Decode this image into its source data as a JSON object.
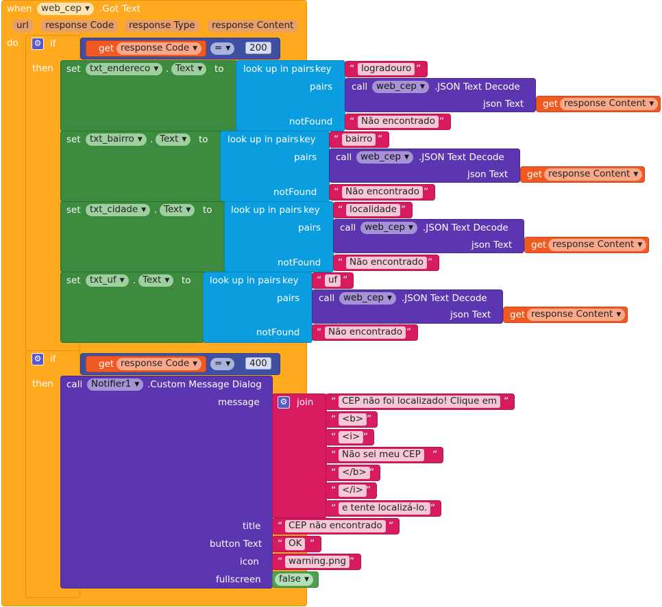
{
  "event": {
    "when": "when",
    "component": "web_cep",
    "event_name": ".Got Text",
    "params": [
      "url",
      "response Code",
      "response Type",
      "response Content"
    ],
    "do": "do"
  },
  "if1": {
    "if": "if",
    "then": "then",
    "get": "get",
    "var": "response Code",
    "op": "=",
    "value": "200"
  },
  "set_rows": [
    {
      "set": "set",
      "comp": "txt_endereco",
      "prop": "Text",
      "to": "to",
      "lookup": "look up in pairs",
      "key_label": "key",
      "key": "logradouro",
      "pairs": "pairs",
      "call": "call",
      "decode_comp": "web_cep",
      "decode_method": ".JSON Text Decode",
      "json_text": "json Text",
      "get": "get",
      "content": "response Content",
      "notfound_label": "notFound",
      "notfound": "Não encontrado"
    },
    {
      "set": "set",
      "comp": "txt_bairro",
      "prop": "Text",
      "to": "to",
      "lookup": "look up in pairs",
      "key_label": "key",
      "key": "bairro",
      "pairs": "pairs",
      "call": "call",
      "decode_comp": "web_cep",
      "decode_method": ".JSON Text Decode",
      "json_text": "json Text",
      "get": "get",
      "content": "response Content",
      "notfound_label": "notFound",
      "notfound": "Não encontrado"
    },
    {
      "set": "set",
      "comp": "txt_cidade",
      "prop": "Text",
      "to": "to",
      "lookup": "look up in pairs",
      "key_label": "key",
      "key": "localidade",
      "pairs": "pairs",
      "call": "call",
      "decode_comp": "web_cep",
      "decode_method": ".JSON Text Decode",
      "json_text": "json Text",
      "get": "get",
      "content": "response Content",
      "notfound_label": "notFound",
      "notfound": "Não encontrado"
    },
    {
      "set": "set",
      "comp": "txt_uf",
      "prop": "Text",
      "to": "to",
      "lookup": "look up in pairs",
      "key_label": "key",
      "key": "uf",
      "pairs": "pairs",
      "call": "call",
      "decode_comp": "web_cep",
      "decode_method": ".JSON Text Decode",
      "json_text": "json Text",
      "get": "get",
      "content": "response Content",
      "notfound_label": "notFound",
      "notfound": "Não encontrado"
    }
  ],
  "if2": {
    "if": "if",
    "then": "then",
    "get": "get",
    "var": "response Code",
    "op": "=",
    "value": "400"
  },
  "notifier": {
    "call": "call",
    "comp": "Notifier1",
    "method": ".Custom Message Dialog",
    "message_label": "message",
    "join": "join",
    "join_items": [
      "CEP não foi localizado! Clique em",
      "<b>",
      "<i>",
      "Não sei meu CEP",
      "</b>",
      "</i>",
      "e tente localizá-lo."
    ],
    "title_label": "title",
    "title": "CEP não encontrado",
    "button_label": "button Text",
    "button": "OK",
    "icon_label": "icon",
    "icon": "warning.png",
    "fullscreen_label": "fullscreen",
    "fullscreen": "false"
  },
  "colors": {
    "event": "#FFA91E",
    "setter": "#3D8B3E",
    "dictionary": "#0A9EE0",
    "component_call": "#5C35B0",
    "text": "#D81B60",
    "variable": "#F05A22",
    "math_compare": "#3F4FA2",
    "logic": "#4CA24E"
  }
}
